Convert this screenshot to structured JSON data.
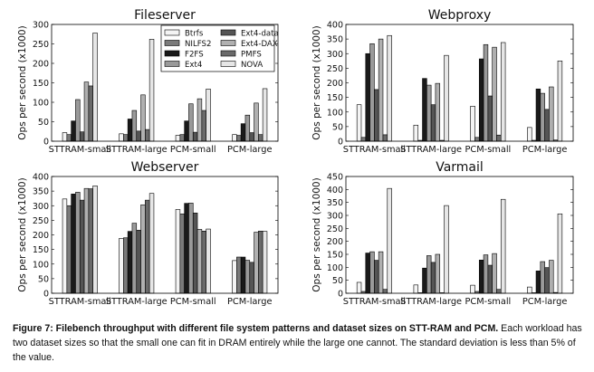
{
  "chart_data": [
    {
      "type": "bar",
      "title": "Fileserver",
      "ylabel": "Ops per second (x1000)",
      "xlabel": "",
      "ylim": [
        0,
        300
      ],
      "yticks": [
        0,
        50,
        100,
        150,
        200,
        250,
        300
      ],
      "categories": [
        "STTRAM-small",
        "STTRAM-large",
        "PCM-small",
        "PCM-large"
      ],
      "legend": "top-right",
      "series": [
        {
          "name": "Btrfs",
          "values": [
            22,
            19,
            15,
            17
          ]
        },
        {
          "name": "NILFS2",
          "values": [
            17,
            17,
            17,
            15
          ]
        },
        {
          "name": "F2FS",
          "values": [
            52,
            57,
            52,
            45
          ]
        },
        {
          "name": "Ext4",
          "values": [
            107,
            79,
            96,
            67
          ]
        },
        {
          "name": "Ext4-data",
          "values": [
            24,
            26,
            23,
            22
          ]
        },
        {
          "name": "Ext4-DAX",
          "values": [
            152,
            119,
            109,
            98
          ]
        },
        {
          "name": "PMFS",
          "values": [
            142,
            30,
            79,
            17
          ]
        },
        {
          "name": "NOVA",
          "values": [
            278,
            262,
            134,
            135
          ]
        }
      ]
    },
    {
      "type": "bar",
      "title": "Webproxy",
      "ylabel": "Ops per second (x1000)",
      "xlabel": "",
      "ylim": [
        0,
        400
      ],
      "yticks": [
        0,
        50,
        100,
        150,
        200,
        250,
        300,
        350,
        400
      ],
      "categories": [
        "STTRAM-small",
        "STTRAM-large",
        "PCM-small",
        "PCM-large"
      ],
      "series": [
        {
          "name": "Btrfs",
          "values": [
            125,
            55,
            120,
            47
          ]
        },
        {
          "name": "NILFS2",
          "values": [
            13,
            3,
            13,
            3
          ]
        },
        {
          "name": "F2FS",
          "values": [
            300,
            215,
            282,
            179
          ]
        },
        {
          "name": "Ext4",
          "values": [
            334,
            192,
            331,
            164
          ]
        },
        {
          "name": "Ext4-data",
          "values": [
            177,
            125,
            155,
            109
          ]
        },
        {
          "name": "Ext4-DAX",
          "values": [
            350,
            198,
            322,
            186
          ]
        },
        {
          "name": "PMFS",
          "values": [
            22,
            3,
            21,
            4
          ]
        },
        {
          "name": "NOVA",
          "values": [
            362,
            294,
            338,
            275
          ]
        }
      ]
    },
    {
      "type": "bar",
      "title": "Webserver",
      "ylabel": "Ops per second (x1000)",
      "xlabel": "",
      "ylim": [
        0,
        400
      ],
      "yticks": [
        0,
        50,
        100,
        150,
        200,
        250,
        300,
        350,
        400
      ],
      "categories": [
        "STTRAM-small",
        "STTRAM-large",
        "PCM-small",
        "PCM-large"
      ],
      "series": [
        {
          "name": "Btrfs",
          "values": [
            323,
            188,
            287,
            112
          ]
        },
        {
          "name": "NILFS2",
          "values": [
            300,
            190,
            272,
            124
          ]
        },
        {
          "name": "F2FS",
          "values": [
            340,
            212,
            308,
            124
          ]
        },
        {
          "name": "Ext4",
          "values": [
            346,
            240,
            309,
            113
          ]
        },
        {
          "name": "Ext4-data",
          "values": [
            319,
            216,
            275,
            106
          ]
        },
        {
          "name": "Ext4-DAX",
          "values": [
            359,
            303,
            219,
            209
          ]
        },
        {
          "name": "PMFS",
          "values": [
            358,
            319,
            213,
            213
          ]
        },
        {
          "name": "NOVA",
          "values": [
            368,
            342,
            220,
            212
          ]
        }
      ]
    },
    {
      "type": "bar",
      "title": "Varmail",
      "ylabel": "Ops per second (x1000)",
      "xlabel": "",
      "ylim": [
        0,
        450
      ],
      "yticks": [
        0,
        50,
        100,
        150,
        200,
        250,
        300,
        350,
        400,
        450
      ],
      "categories": [
        "STTRAM-small",
        "STTRAM-large",
        "PCM-small",
        "PCM-large"
      ],
      "series": [
        {
          "name": "Btrfs",
          "values": [
            42,
            32,
            31,
            24
          ]
        },
        {
          "name": "NILFS2",
          "values": [
            7,
            2,
            7,
            2
          ]
        },
        {
          "name": "F2FS",
          "values": [
            155,
            97,
            128,
            86
          ]
        },
        {
          "name": "Ext4",
          "values": [
            160,
            145,
            148,
            122
          ]
        },
        {
          "name": "Ext4-data",
          "values": [
            127,
            119,
            108,
            99
          ]
        },
        {
          "name": "Ext4-DAX",
          "values": [
            160,
            150,
            153,
            127
          ]
        },
        {
          "name": "PMFS",
          "values": [
            15,
            2,
            15,
            3
          ]
        },
        {
          "name": "NOVA",
          "values": [
            404,
            338,
            362,
            306
          ]
        }
      ]
    }
  ],
  "series_colors": [
    "#f4f4f4",
    "#7a7a7a",
    "#1a1a1a",
    "#9a9a9a",
    "#555555",
    "#b0b0b0",
    "#6a6a6a",
    "#e6e6e6"
  ],
  "caption": {
    "label": "Figure 7: Filebench throughput with different file system patterns and dataset sizes on STT-RAM and PCM.",
    "text": " Each workload has two dataset sizes so that the small one can fit in DRAM entirely while the large one cannot. The standard deviation is less than 5% of the value."
  }
}
